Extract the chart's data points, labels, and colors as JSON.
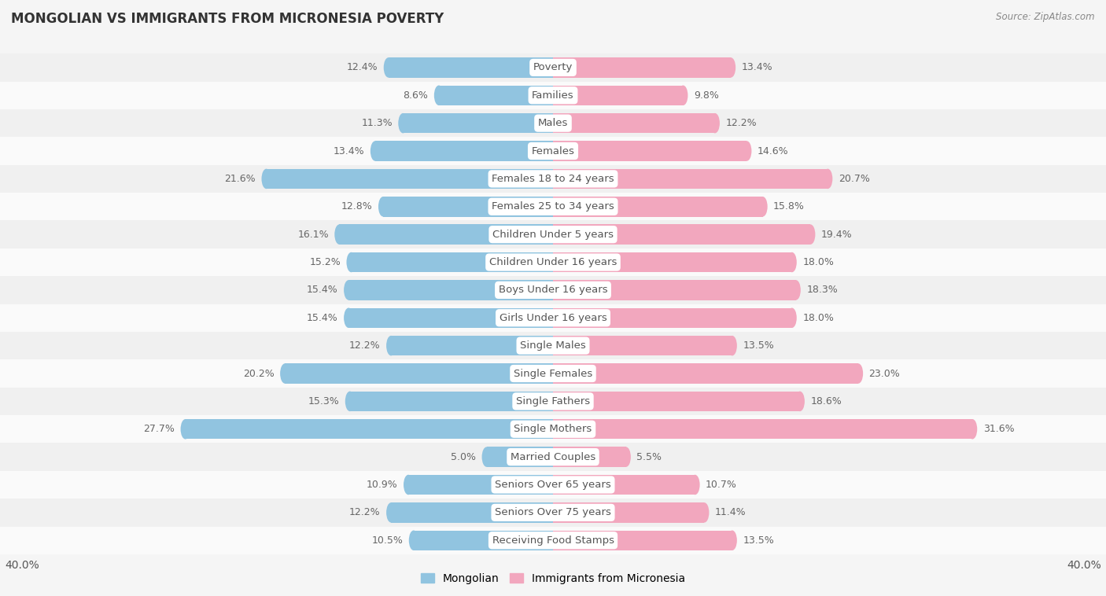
{
  "title": "MONGOLIAN VS IMMIGRANTS FROM MICRONESIA POVERTY",
  "source": "Source: ZipAtlas.com",
  "categories": [
    "Poverty",
    "Families",
    "Males",
    "Females",
    "Females 18 to 24 years",
    "Females 25 to 34 years",
    "Children Under 5 years",
    "Children Under 16 years",
    "Boys Under 16 years",
    "Girls Under 16 years",
    "Single Males",
    "Single Females",
    "Single Fathers",
    "Single Mothers",
    "Married Couples",
    "Seniors Over 65 years",
    "Seniors Over 75 years",
    "Receiving Food Stamps"
  ],
  "mongolian": [
    12.4,
    8.6,
    11.3,
    13.4,
    21.6,
    12.8,
    16.1,
    15.2,
    15.4,
    15.4,
    12.2,
    20.2,
    15.3,
    27.7,
    5.0,
    10.9,
    12.2,
    10.5
  ],
  "micronesia": [
    13.4,
    9.8,
    12.2,
    14.6,
    20.7,
    15.8,
    19.4,
    18.0,
    18.3,
    18.0,
    13.5,
    23.0,
    18.6,
    31.6,
    5.5,
    10.7,
    11.4,
    13.5
  ],
  "mongolian_color": "#91C4E0",
  "micronesia_color": "#F2A7BE",
  "row_color_even": "#f0f0f0",
  "row_color_odd": "#fafafa",
  "background_color": "#f5f5f5",
  "text_color": "#555555",
  "value_color": "#666666",
  "xlim": 40.0,
  "bar_height": 0.72,
  "label_fontsize": 9.5,
  "value_fontsize": 9.0,
  "legend_mongolian": "Mongolian",
  "legend_micronesia": "Immigrants from Micronesia"
}
